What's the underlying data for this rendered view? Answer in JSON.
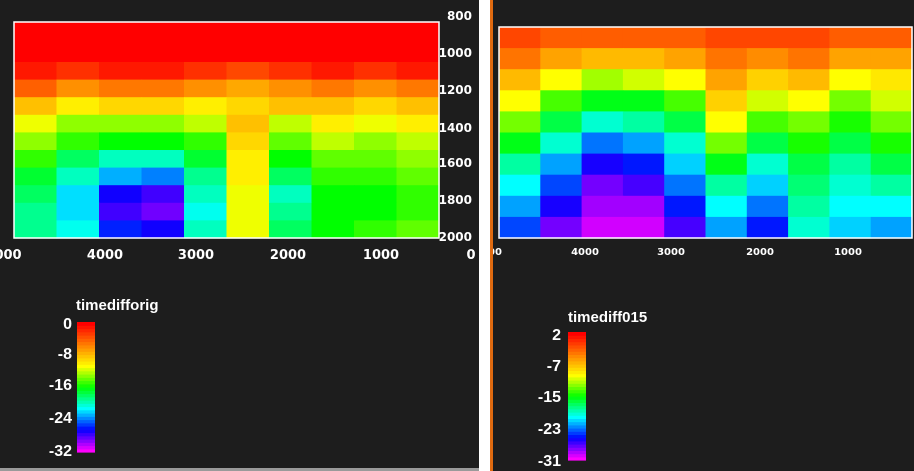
{
  "panels": [
    {
      "id": "left",
      "colorbar": {
        "title": "timedifforig",
        "labels": [
          "0",
          "-8",
          "-16",
          "-24",
          "-32"
        ],
        "min": -32,
        "max": 0
      }
    },
    {
      "id": "right",
      "colorbar": {
        "title": "timediff015",
        "labels": [
          "2",
          "-7",
          "-15",
          "-23",
          "-31"
        ],
        "min": -31,
        "max": 2
      }
    }
  ],
  "chart_data": [
    {
      "type": "heatmap",
      "title": "",
      "xlabel": "",
      "ylabel": "",
      "x_tick_labels": [
        "000",
        "4000",
        "3000",
        "2000",
        "1000",
        "0"
      ],
      "y_tick_labels": [
        "800",
        "1000",
        "1200",
        "1400",
        "1600",
        "1800",
        "2000"
      ],
      "xlim": [
        5000,
        0
      ],
      "ylim": [
        800,
        2000
      ],
      "colorbar_title": "timedifforig",
      "colorbar_range": [
        -32,
        0
      ],
      "colormap": [
        "#ff0000",
        "#ff8000",
        "#ffff00",
        "#00ff00",
        "#00ffff",
        "#0000ff",
        "#ff00ff"
      ],
      "y_rows": [
        1050,
        1150,
        1250,
        1350,
        1450,
        1550,
        1650,
        1750,
        1850,
        1950
      ],
      "x_columns": [
        4750,
        4250,
        3750,
        3250,
        2750,
        2250,
        1750,
        1250,
        750,
        250
      ],
      "values": [
        [
          -1,
          -2,
          -1,
          -1,
          -2,
          -3,
          -2,
          -1,
          -2,
          -1
        ],
        [
          -4,
          -6,
          -5,
          -5,
          -6,
          -7,
          -6,
          -5,
          -6,
          -5
        ],
        [
          -8,
          -10,
          -9,
          -9,
          -10,
          -9,
          -8,
          -8,
          -9,
          -8
        ],
        [
          -11,
          -13,
          -13,
          -13,
          -12,
          -8,
          -12,
          -10,
          -11,
          -10
        ],
        [
          -13,
          -15,
          -16,
          -16,
          -15,
          -9,
          -14,
          -12,
          -13,
          -12
        ],
        [
          -15,
          -18,
          -20,
          -20,
          -17,
          -10,
          -16,
          -14,
          -14,
          -13
        ],
        [
          -17,
          -20,
          -23,
          -24,
          -19,
          -10,
          -18,
          -15,
          -15,
          -14
        ],
        [
          -18,
          -22,
          -27,
          -28,
          -20,
          -11,
          -20,
          -16,
          -16,
          -15
        ],
        [
          -19,
          -22,
          -28,
          -29,
          -21,
          -11,
          -19,
          -16,
          -16,
          -15
        ],
        [
          -19,
          -21,
          -26,
          -27,
          -20,
          -11,
          -18,
          -16,
          -15,
          -14
        ]
      ]
    },
    {
      "type": "heatmap",
      "title": "",
      "xlabel": "",
      "ylabel": "",
      "x_tick_labels": [
        "00",
        "4000",
        "3000",
        "2000",
        "1000"
      ],
      "xlim": [
        5000,
        0
      ],
      "ylim": [
        800,
        2000
      ],
      "colorbar_title": "timediff015",
      "colorbar_range": [
        -31,
        2
      ],
      "colormap": [
        "#ff0000",
        "#ff8000",
        "#ffff00",
        "#00ff00",
        "#00ffff",
        "#0000ff",
        "#ff00ff"
      ],
      "y_rows": [
        1050,
        1150,
        1250,
        1350,
        1450,
        1550,
        1650,
        1750,
        1850,
        1950
      ],
      "x_columns": [
        4750,
        4250,
        3750,
        3250,
        2750,
        2250,
        1750,
        1250,
        750,
        250
      ],
      "values": [
        [
          -1,
          -2,
          -2,
          -2,
          -2,
          -1,
          -1,
          -1,
          -2,
          -2
        ],
        [
          -3,
          -5,
          -6,
          -6,
          -5,
          -3,
          -4,
          -3,
          -5,
          -5
        ],
        [
          -6,
          -9,
          -11,
          -10,
          -9,
          -5,
          -7,
          -6,
          -9,
          -8
        ],
        [
          -9,
          -13,
          -15,
          -15,
          -13,
          -7,
          -10,
          -9,
          -12,
          -10
        ],
        [
          -12,
          -16,
          -19,
          -18,
          -16,
          -9,
          -13,
          -12,
          -14,
          -12
        ],
        [
          -15,
          -19,
          -23,
          -22,
          -19,
          -12,
          -16,
          -14,
          -16,
          -14
        ],
        [
          -18,
          -22,
          -26,
          -25,
          -21,
          -15,
          -19,
          -16,
          -18,
          -16
        ],
        [
          -20,
          -24,
          -28,
          -27,
          -23,
          -18,
          -21,
          -17,
          -19,
          -18
        ],
        [
          -22,
          -26,
          -29,
          -29,
          -25,
          -20,
          -23,
          -18,
          -20,
          -20
        ],
        [
          -24,
          -28,
          -30,
          -30,
          -27,
          -22,
          -25,
          -19,
          -21,
          -22
        ]
      ]
    }
  ]
}
